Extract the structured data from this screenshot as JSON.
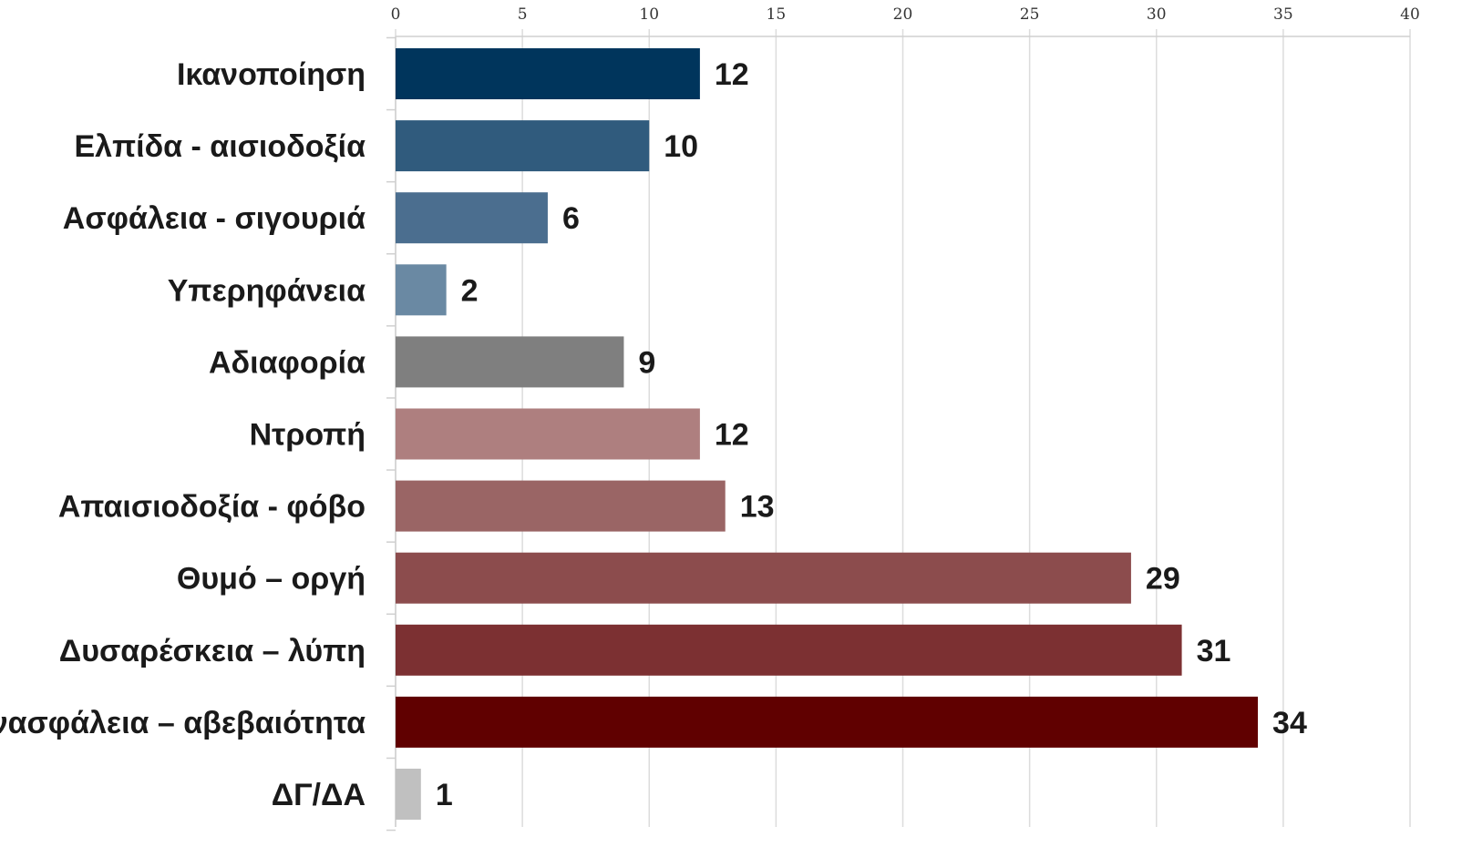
{
  "chart_data": {
    "type": "bar",
    "orientation": "horizontal",
    "categories": [
      "Ικανοποίηση",
      "Ελπίδα - αισιοδοξία",
      "Ασφάλεια - σιγουριά",
      "Υπερηφάνεια",
      "Αδιαφορία",
      "Ντροπή",
      "Απαισιοδοξία - φόβο",
      "Θυμό – οργή",
      "Δυσαρέσκεια – λύπη",
      "Ανασφάλεια – αβεβαιότητα",
      "ΔΓ/ΔΑ"
    ],
    "values": [
      12,
      10,
      6,
      2,
      9,
      12,
      13,
      29,
      31,
      34,
      1
    ],
    "data_labels": [
      "12",
      "10",
      "6",
      "2",
      "9",
      "12",
      "13",
      "29",
      "31",
      "34",
      "1"
    ],
    "colors": [
      "#00355c",
      "#305b7d",
      "#4b6e8f",
      "#6a89a3",
      "#7f7f7f",
      "#ae7f7f",
      "#9a6565",
      "#8c4c4d",
      "#7c3032",
      "#600000",
      "#c0c0c0"
    ],
    "xlim": [
      0,
      40
    ],
    "xticks": [
      0,
      5,
      10,
      15,
      20,
      25,
      30,
      35,
      40
    ],
    "xtick_labels": [
      "0",
      "5",
      "10",
      "15",
      "20",
      "25",
      "30",
      "35",
      "40"
    ],
    "x_axis_position": "top",
    "grid": true,
    "title": "",
    "xlabel": "",
    "ylabel": ""
  }
}
